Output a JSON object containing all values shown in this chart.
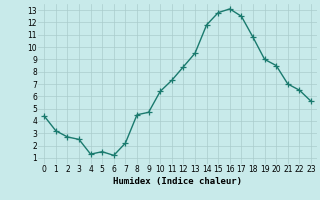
{
  "x": [
    0,
    1,
    2,
    3,
    4,
    5,
    6,
    7,
    8,
    9,
    10,
    11,
    12,
    13,
    14,
    15,
    16,
    17,
    18,
    19,
    20,
    21,
    22,
    23
  ],
  "y": [
    4.4,
    3.2,
    2.7,
    2.5,
    1.3,
    1.5,
    1.2,
    2.2,
    4.5,
    4.7,
    6.4,
    7.3,
    8.4,
    9.5,
    11.8,
    12.8,
    13.1,
    12.5,
    10.8,
    9.0,
    8.5,
    7.0,
    6.5,
    5.6
  ],
  "line_color": "#1a7a6e",
  "marker": "+",
  "markersize": 4,
  "linewidth": 1.0,
  "bg_color": "#c8eaea",
  "grid_color": "#aacccc",
  "xlabel": "Humidex (Indice chaleur)",
  "xlim": [
    -0.5,
    23.5
  ],
  "ylim": [
    0.5,
    13.5
  ],
  "xticks": [
    0,
    1,
    2,
    3,
    4,
    5,
    6,
    7,
    8,
    9,
    10,
    11,
    12,
    13,
    14,
    15,
    16,
    17,
    18,
    19,
    20,
    21,
    22,
    23
  ],
  "yticks": [
    1,
    2,
    3,
    4,
    5,
    6,
    7,
    8,
    9,
    10,
    11,
    12,
    13
  ],
  "tick_fontsize": 5.5,
  "xlabel_fontsize": 6.5
}
